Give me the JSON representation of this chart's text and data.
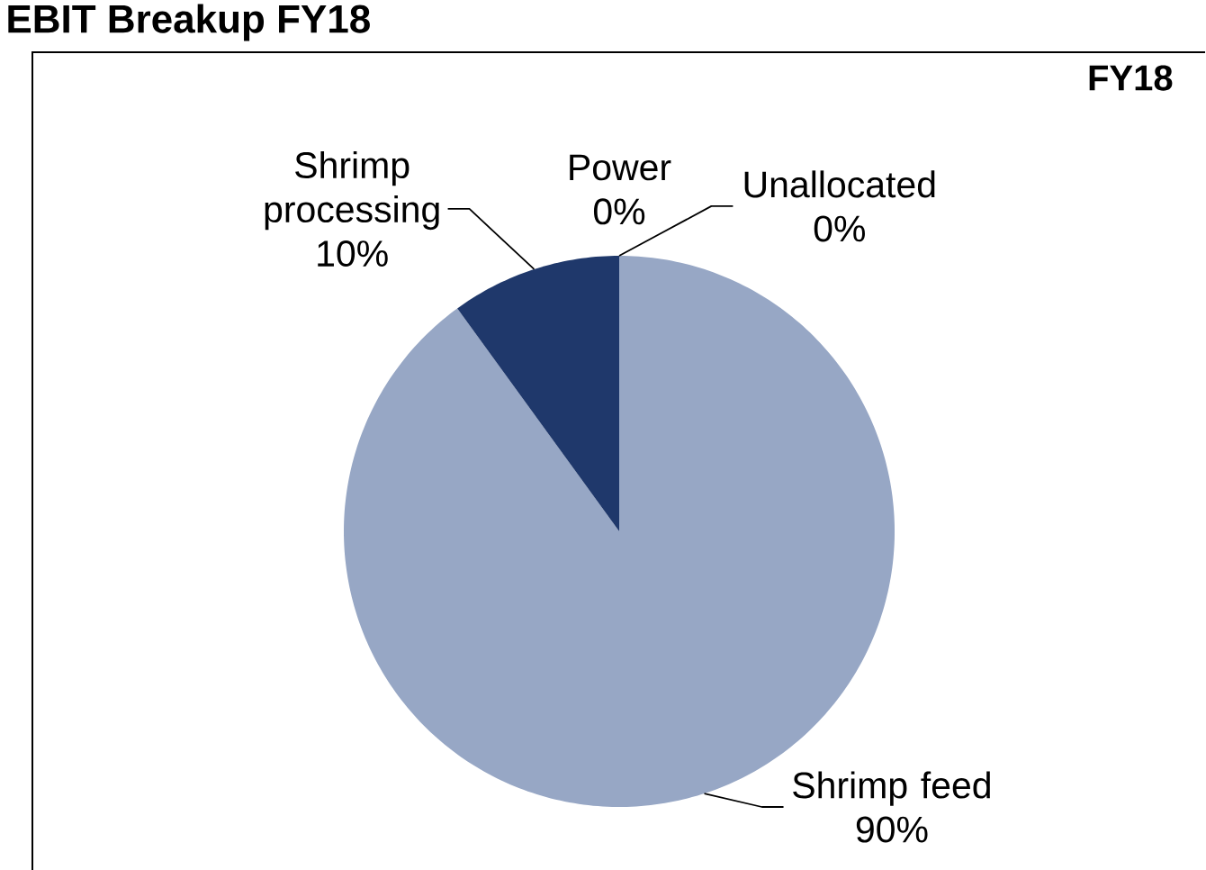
{
  "chart_data": {
    "type": "pie",
    "title": "EBIT Breakup FY18",
    "subtitle": "FY18",
    "categories": [
      "Shrimp feed",
      "Shrimp processing",
      "Power",
      "Unallocated"
    ],
    "values": [
      90,
      10,
      0,
      0
    ],
    "colors": [
      "#97a7c5",
      "#1f386b",
      "#7f7f7f",
      "#a5a5a5"
    ],
    "value_labels": [
      "90%",
      "10%",
      "0%",
      "0%"
    ]
  }
}
